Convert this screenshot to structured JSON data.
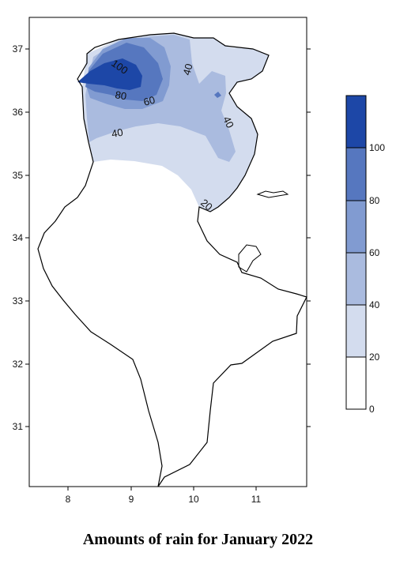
{
  "title": "Amounts of rain for January 2022",
  "axes": {
    "x_ticks": [
      "8",
      "9",
      "10",
      "11"
    ],
    "y_ticks": [
      "37",
      "36",
      "35",
      "34",
      "33",
      "32",
      "31"
    ]
  },
  "legend": {
    "levels": [
      "0",
      "20",
      "40",
      "60",
      "80",
      "100"
    ],
    "colors": [
      "#ffffff",
      "#d3dcee",
      "#aabbdf",
      "#819bd1",
      "#5677bf",
      "#1d47a7"
    ]
  },
  "contour_labels": [
    "100",
    "80",
    "60",
    "40",
    "40",
    "40",
    "20"
  ]
}
